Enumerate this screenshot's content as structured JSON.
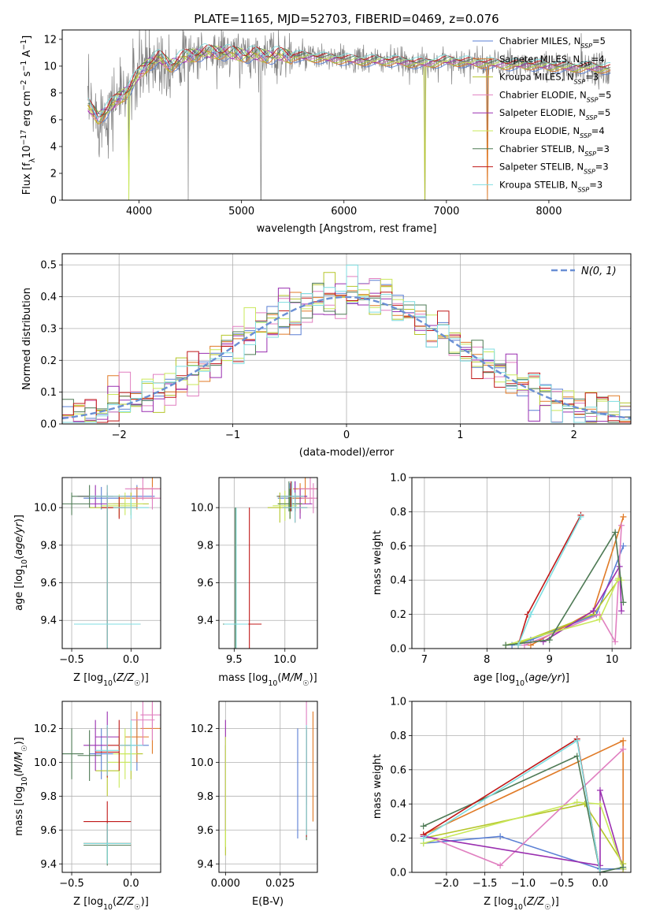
{
  "figure_title": "PLATE=1165, MJD=52703, FIBERID=0469, z=0.076",
  "colors": {
    "Chabrier MILES": "#5a7fd4",
    "Salpeter MILES": "#e07a26",
    "Kroupa MILES": "#b5c62a",
    "Chabrier ELODIE": "#e07fc0",
    "Salpeter ELODIE": "#9a2fb0",
    "Kroupa ELODIE": "#c9e85a",
    "Chabrier STELIB": "#4e7a55",
    "Salpeter STELIB": "#c01818",
    "Kroupa STELIB": "#7fdde0",
    "data": "#808080",
    "normal": "#6a8fd4"
  },
  "chart_data": [
    {
      "id": "spectrum",
      "type": "line",
      "title": "PLATE=1165, MJD=52703, FIBERID=0469, z=0.076",
      "xlabel": "wavelength [Angstrom, rest frame]",
      "ylabel": "Flux [f_λ 10^-17 erg cm^-2 s^-1 A^-1]",
      "xlim": [
        3250,
        8800
      ],
      "ylim": [
        0,
        12.7
      ],
      "xticks": [
        4000,
        5000,
        6000,
        7000,
        8000
      ],
      "yticks": [
        0,
        2,
        4,
        6,
        8,
        10,
        12
      ],
      "grid": false,
      "legend_position": "top-right",
      "legend": [
        {
          "label": "Chabrier MILES, N",
          "sub": "SSP",
          "suffix": "=5"
        },
        {
          "label": "Salpeter MILES, N",
          "sub": "SSP",
          "suffix": "=4"
        },
        {
          "label": "Kroupa MILES, N",
          "sub": "SSP",
          "suffix": "=3"
        },
        {
          "label": "Chabrier ELODIE, N",
          "sub": "SSP",
          "suffix": "=5"
        },
        {
          "label": "Salpeter ELODIE, N",
          "sub": "SSP",
          "suffix": "=5"
        },
        {
          "label": "Kroupa ELODIE, N",
          "sub": "SSP",
          "suffix": "=4"
        },
        {
          "label": "Chabrier STELIB, N",
          "sub": "SSP",
          "suffix": "=3"
        },
        {
          "label": "Salpeter STELIB, N",
          "sub": "SSP",
          "suffix": "=3"
        },
        {
          "label": "Kroupa STELIB, N",
          "sub": "SSP",
          "suffix": "=3"
        }
      ],
      "model_continuum": {
        "x": [
          3500,
          3600,
          3700,
          3800,
          3900,
          4000,
          4100,
          4200,
          4300,
          4400,
          4500,
          4600,
          4700,
          4800,
          4900,
          5000,
          5200,
          5400,
          5600,
          5800,
          6000,
          6200,
          6400,
          6600,
          6800,
          7000,
          7200,
          7400,
          7600,
          7800,
          8000,
          8200,
          8400,
          8600
        ],
        "y": [
          7.0,
          6.2,
          6.8,
          7.6,
          8.3,
          9.4,
          10.3,
          10.6,
          10.1,
          10.5,
          10.8,
          11.0,
          11.0,
          11.1,
          10.9,
          10.9,
          10.8,
          10.8,
          10.7,
          10.6,
          10.5,
          10.4,
          10.4,
          10.3,
          10.2,
          10.4,
          10.3,
          10.2,
          10.1,
          10.1,
          10.0,
          9.9,
          9.9,
          9.8
        ]
      },
      "data_dropouts": [
        {
          "x": 3900,
          "y": 0
        },
        {
          "x": 4480,
          "y": 0
        },
        {
          "x": 5190,
          "y": 0
        },
        {
          "x": 6790,
          "y": 0
        },
        {
          "x": 7400,
          "y": 0
        }
      ]
    },
    {
      "id": "residuals",
      "type": "bar",
      "xlabel": "(data-model)/error",
      "ylabel": "Normed distribution",
      "xlim": [
        -2.5,
        2.5
      ],
      "ylim": [
        0,
        0.535
      ],
      "xticks": [
        -2,
        -1,
        0,
        1,
        2
      ],
      "yticks": [
        0.0,
        0.1,
        0.2,
        0.3,
        0.4,
        0.5
      ],
      "grid": true,
      "legend_position": "top-right",
      "legend": [
        {
          "label": "N(0, 1)"
        }
      ],
      "bin_width": 0.1
    },
    {
      "id": "age-vs-Z",
      "type": "scatter",
      "xlabel": "Z [log10(Z/Z☉)]",
      "ylabel": "age [log10(age/yr)]",
      "xlim": [
        -0.58,
        0.25
      ],
      "ylim": [
        9.25,
        10.16
      ],
      "xticks": [
        -0.5,
        0.0
      ],
      "yticks": [
        9.4,
        9.6,
        9.8,
        10.0
      ],
      "grid": true
    },
    {
      "id": "age-vs-mass",
      "type": "scatter",
      "xlabel": "mass [log10(M/M☉)]",
      "ylabel": "",
      "xlim": [
        9.35,
        10.32
      ],
      "ylim": [
        9.25,
        10.16
      ],
      "xticks": [
        9.5,
        10.0
      ],
      "yticks": [
        9.4,
        9.6,
        9.8,
        10.0
      ],
      "grid": true
    },
    {
      "id": "weight-vs-age",
      "type": "line",
      "xlabel": "age [log10(age/yr)]",
      "ylabel": "mass weight",
      "xlim": [
        6.8,
        10.3
      ],
      "ylim": [
        0,
        1.0
      ],
      "xticks": [
        7,
        8,
        9,
        10
      ],
      "yticks": [
        0.0,
        0.2,
        0.4,
        0.6,
        0.8,
        1.0
      ],
      "grid": true
    },
    {
      "id": "mass-vs-Z",
      "type": "scatter",
      "xlabel": "Z [log10(Z/Z☉)]",
      "ylabel": "mass [log10(M/M☉)]",
      "xlim": [
        -0.58,
        0.25
      ],
      "ylim": [
        9.35,
        10.36
      ],
      "xticks": [
        -0.5,
        0.0
      ],
      "yticks": [
        9.4,
        9.6,
        9.8,
        10.0,
        10.2
      ],
      "grid": true
    },
    {
      "id": "mass-vs-ebv",
      "type": "scatter",
      "xlabel": "E(B-V)",
      "ylabel": "",
      "xlim": [
        -0.003,
        0.042
      ],
      "ylim": [
        9.35,
        10.36
      ],
      "xticks": [
        0.0,
        0.025
      ],
      "xticklabels": [
        "0.000",
        "0.025"
      ],
      "yticks": [
        9.4,
        9.6,
        9.8,
        10.0,
        10.2
      ],
      "grid": true
    },
    {
      "id": "weight-vs-Z",
      "type": "line",
      "xlabel": "Z [log10(Z/Z☉)]",
      "ylabel": "mass weight",
      "xlim": [
        -2.45,
        0.4
      ],
      "ylim": [
        0,
        1.0
      ],
      "xticks": [
        -2.0,
        -1.5,
        -1.0,
        -0.5,
        0.0
      ],
      "yticks": [
        0.0,
        0.2,
        0.4,
        0.6,
        0.8,
        1.0
      ],
      "grid": true
    }
  ],
  "models": [
    {
      "name": "Chabrier MILES",
      "age": [
        9.38,
        10.05,
        10.06
      ],
      "Z": [
        -0.2,
        -0.25,
        0.05
      ],
      "mass": [
        9.52,
        10.05,
        10.1
      ],
      "ebv": 0.033,
      "ages_w": [
        8.4,
        8.7,
        9.75,
        10.18
      ],
      "w_age": [
        0.02,
        0.05,
        0.2,
        0.6
      ],
      "Z_w": [
        -2.3,
        -1.3,
        0.0,
        0.3
      ],
      "w_Z": [
        0.17,
        0.21,
        0.02,
        0.02
      ]
    },
    {
      "name": "Salpeter MILES",
      "age": [
        9.38,
        10.05,
        10.1
      ],
      "Z": [
        -0.2,
        0.05,
        0.18
      ],
      "mass": [
        9.52,
        10.15,
        10.2
      ],
      "ebv": 0.04,
      "ages_w": [
        8.7,
        9.7,
        10.18
      ],
      "w_age": [
        0.02,
        0.22,
        0.77
      ],
      "Z_w": [
        -2.3,
        0.3,
        0.3
      ],
      "w_Z": [
        0.22,
        0.77,
        0.0
      ]
    },
    {
      "name": "Kroupa MILES",
      "age": [
        9.38,
        10.0,
        10.02
      ],
      "Z": [
        -0.2,
        -0.2,
        0.0
      ],
      "mass": [
        9.52,
        9.95,
        10.05
      ],
      "ebv": 0.0,
      "ages_w": [
        8.5,
        9.7,
        10.1
      ],
      "w_age": [
        0.03,
        0.2,
        0.4
      ],
      "Z_w": [
        -2.3,
        -0.2,
        0.3
      ],
      "w_Z": [
        0.2,
        0.4,
        0.05
      ]
    },
    {
      "name": "Chabrier ELODIE",
      "age": [
        9.38,
        10.1,
        10.05
      ],
      "Z": [
        -0.2,
        0.1,
        0.18
      ],
      "mass": [
        9.52,
        10.25,
        10.28
      ],
      "ebv": 0.037,
      "ages_w": [
        8.6,
        9.8,
        10.05,
        10.15
      ],
      "w_age": [
        0.02,
        0.2,
        0.04,
        0.72
      ],
      "Z_w": [
        -2.3,
        -1.3,
        0.3
      ],
      "w_Z": [
        0.22,
        0.04,
        0.72
      ]
    },
    {
      "name": "Salpeter ELODIE",
      "age": [
        9.38,
        10.06,
        10.02
      ],
      "Z": [
        -0.2,
        -0.3,
        -0.2
      ],
      "mass": [
        9.52,
        10.1,
        10.15
      ],
      "ebv": 0.0,
      "ages_w": [
        8.9,
        9.7,
        10.12,
        10.15
      ],
      "w_age": [
        0.04,
        0.22,
        0.48,
        0.22
      ],
      "Z_w": [
        -2.3,
        0.0,
        0.0,
        0.3
      ],
      "w_Z": [
        0.21,
        0.04,
        0.48,
        0.02
      ]
    },
    {
      "name": "Kroupa ELODIE",
      "age": [
        9.38,
        10.01,
        10.02
      ],
      "Z": [
        -0.2,
        -0.1,
        -0.05
      ],
      "mass": [
        9.52,
        10.0,
        10.05
      ],
      "ebv": 0.0,
      "ages_w": [
        8.3,
        9.8,
        10.1,
        10.15
      ],
      "w_age": [
        0.02,
        0.17,
        0.41,
        0.4
      ],
      "Z_w": [
        -2.3,
        -0.3,
        0.0,
        0.3
      ],
      "w_Z": [
        0.17,
        0.41,
        0.4,
        0.02
      ]
    },
    {
      "name": "Chabrier STELIB",
      "age": [
        9.38,
        10.06,
        10.02
      ],
      "Z": [
        -0.2,
        -0.35,
        -0.5
      ],
      "mass": [
        9.51,
        10.04,
        10.05
      ],
      "ebv": 0.037,
      "ages_w": [
        8.3,
        9.0,
        10.05,
        10.18
      ],
      "w_age": [
        0.02,
        0.05,
        0.68,
        0.27
      ],
      "Z_w": [
        -2.3,
        -0.3,
        0.0,
        0.3
      ],
      "w_Z": [
        0.27,
        0.68,
        0.0,
        0.03
      ]
    },
    {
      "name": "Salpeter STELIB",
      "age": [
        9.38,
        10.06,
        10.0
      ],
      "Z": [
        -0.2,
        -0.2,
        -0.1
      ],
      "mass": [
        9.65,
        10.06,
        10.1
      ],
      "ebv": 0.037,
      "ages_w": [
        8.5,
        8.65,
        9.5
      ],
      "w_age": [
        0.02,
        0.2,
        0.78
      ],
      "Z_w": [
        -2.3,
        -0.3,
        0.0
      ],
      "w_Z": [
        0.22,
        0.78,
        0.0
      ]
    },
    {
      "name": "Kroupa STELIB",
      "age": [
        9.38,
        10.06,
        10.0
      ],
      "Z": [
        -0.2,
        -0.2,
        0.0
      ],
      "mass": [
        9.52,
        10.07,
        10.1
      ],
      "ebv": 0.037,
      "ages_w": [
        8.5,
        8.7,
        9.5
      ],
      "w_age": [
        0.02,
        0.2,
        0.77
      ],
      "Z_w": [
        -2.3,
        -0.3,
        0.0
      ],
      "w_Z": [
        0.2,
        0.77,
        0.0
      ]
    }
  ]
}
